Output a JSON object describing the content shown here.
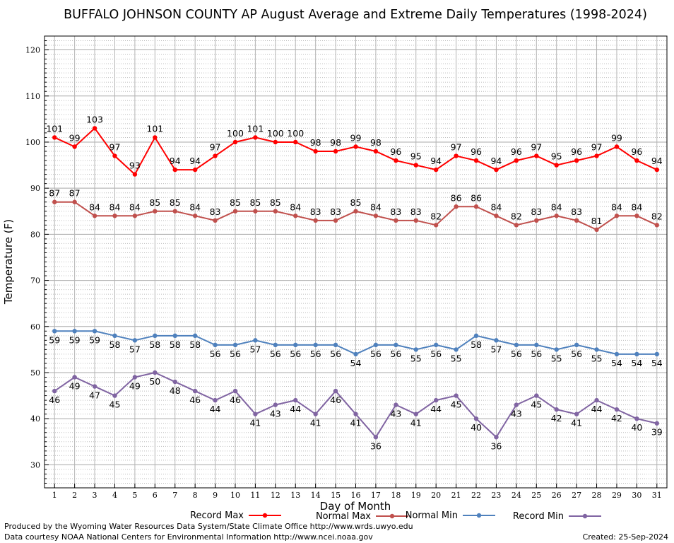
{
  "chart_data": {
    "type": "line",
    "title": "BUFFALO JOHNSON COUNTY AP August Average and Extreme Daily Temperatures (1998-2024)",
    "xlabel": "Day of Month",
    "ylabel": "Temperature (F)",
    "xlim": [
      0.5,
      31.5
    ],
    "ylim": [
      25,
      123
    ],
    "yticks": [
      30,
      40,
      50,
      60,
      70,
      80,
      90,
      100,
      110,
      120
    ],
    "x": [
      1,
      2,
      3,
      4,
      5,
      6,
      7,
      8,
      9,
      10,
      11,
      12,
      13,
      14,
      15,
      16,
      17,
      18,
      19,
      20,
      21,
      22,
      23,
      24,
      25,
      26,
      27,
      28,
      29,
      30,
      31
    ],
    "grid": true,
    "legend_position": "bottom",
    "series": [
      {
        "name": "Record Max",
        "color": "#ff0000",
        "label_pos": "above",
        "values": [
          101,
          99,
          103,
          97,
          93,
          101,
          94,
          94,
          97,
          100,
          101,
          100,
          100,
          98,
          98,
          99,
          98,
          96,
          95,
          94,
          97,
          96,
          94,
          96,
          97,
          95,
          96,
          97,
          99,
          96,
          94
        ]
      },
      {
        "name": "Normal Max",
        "color": "#c0504d",
        "label_pos": "above",
        "values": [
          87,
          87,
          84,
          84,
          84,
          85,
          85,
          84,
          83,
          85,
          85,
          85,
          84,
          83,
          83,
          85,
          84,
          83,
          83,
          82,
          86,
          86,
          84,
          82,
          83,
          84,
          83,
          81,
          84,
          84,
          82
        ]
      },
      {
        "name": "Normal Min",
        "color": "#4f81bd",
        "label_pos": "below",
        "values": [
          59,
          59,
          59,
          58,
          57,
          58,
          58,
          58,
          56,
          56,
          57,
          56,
          56,
          56,
          56,
          54,
          56,
          56,
          55,
          56,
          55,
          58,
          57,
          56,
          56,
          55,
          56,
          55,
          54,
          54,
          54
        ]
      },
      {
        "name": "Record Min",
        "color": "#8064a2",
        "label_pos": "below",
        "values": [
          46,
          49,
          47,
          45,
          49,
          50,
          48,
          46,
          44,
          46,
          41,
          43,
          44,
          41,
          46,
          41,
          36,
          43,
          41,
          44,
          45,
          40,
          36,
          43,
          45,
          42,
          41,
          44,
          42,
          40,
          39
        ]
      }
    ]
  },
  "footer": {
    "left_line1": "Produced by the Wyoming Water Resources Data System/State Climate Office http://www.wrds.uwyo.edu",
    "left_line2": "Data courtesy NOAA National Centers for Environmental Information http://www.ncei.noaa.gov",
    "created": "Created:  25-Sep-2024"
  }
}
